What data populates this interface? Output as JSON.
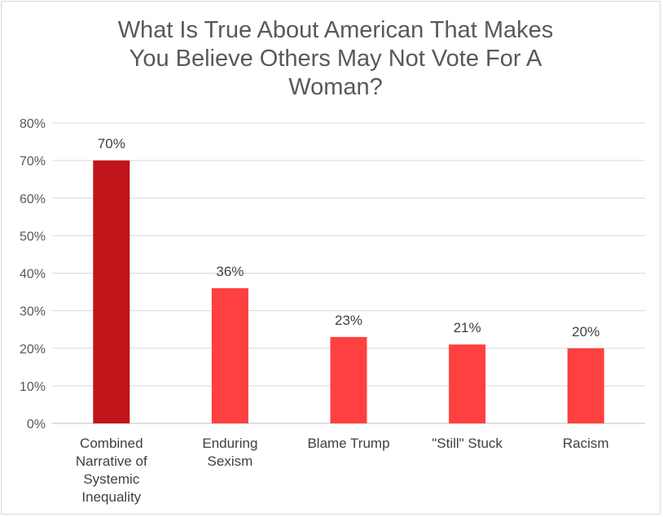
{
  "chart_data": {
    "type": "bar",
    "title_lines": [
      "What Is True About American That Makes",
      "You Believe Others May Not Vote For A",
      "Woman?"
    ],
    "categories": [
      [
        "Combined",
        "Narrative of",
        "Systemic",
        "Inequality"
      ],
      [
        "Enduring",
        "Sexism"
      ],
      [
        "Blame Trump"
      ],
      [
        "\"Still\" Stuck"
      ],
      [
        "Racism"
      ]
    ],
    "values": [
      70,
      36,
      23,
      21,
      20
    ],
    "data_labels": [
      "70%",
      "36%",
      "23%",
      "21%",
      "20%"
    ],
    "ylim": [
      0,
      80
    ],
    "yticks": [
      0,
      10,
      20,
      30,
      40,
      50,
      60,
      70,
      80
    ],
    "ytick_labels": [
      "0%",
      "10%",
      "20%",
      "30%",
      "40%",
      "50%",
      "60%",
      "70%",
      "80%"
    ],
    "xlabel": "",
    "ylabel": "",
    "grid": true,
    "colors": [
      "#c0141b",
      "#ff4040",
      "#ff4040",
      "#ff4040",
      "#ff4040"
    ]
  }
}
